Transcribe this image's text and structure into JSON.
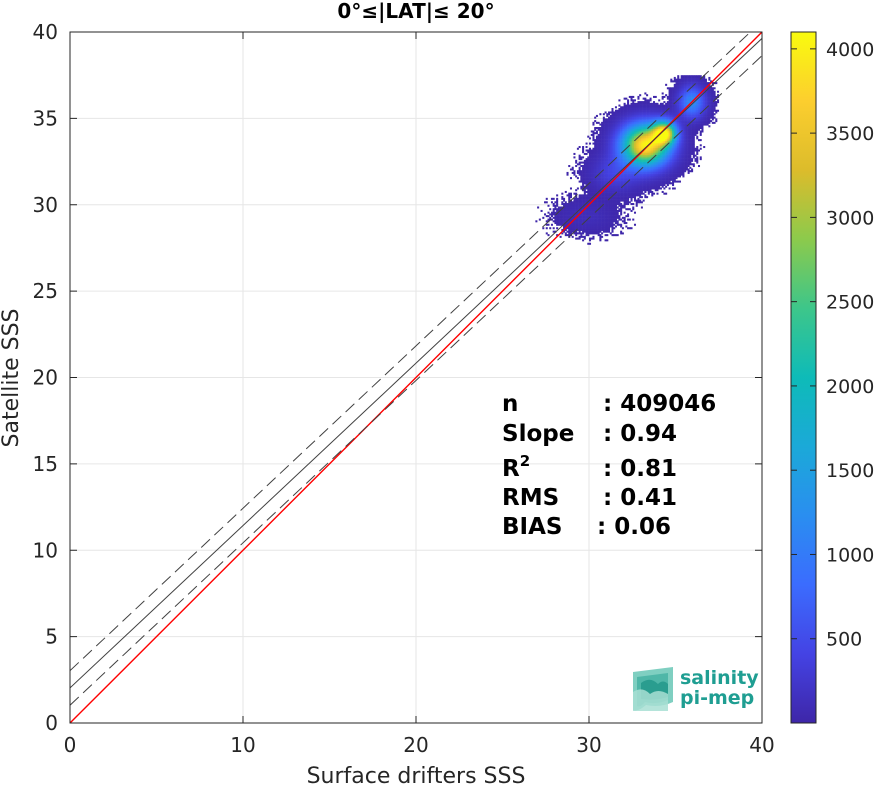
{
  "chart_data": {
    "type": "heatmap",
    "title": "0°≤|LAT|≤ 20°",
    "xlabel": "Surface drifters SSS",
    "ylabel": "Satellite SSS",
    "xlim": [
      0,
      40
    ],
    "ylim": [
      0,
      40
    ],
    "xticks": [
      "0",
      "10",
      "20",
      "30",
      "40"
    ],
    "yticks": [
      "0",
      "5",
      "10",
      "15",
      "20",
      "25",
      "30",
      "35",
      "40"
    ],
    "grid": true,
    "reference_lines": [
      {
        "name": "one-to-one",
        "color": "#ff0000",
        "intercept": 0,
        "slope": 1
      },
      {
        "name": "regression",
        "color": "#404040",
        "intercept": 2.03,
        "slope": 0.94
      },
      {
        "name": "regression-upper",
        "color": "#404040",
        "style": "dashed",
        "intercept": 3.03,
        "slope": 0.94
      },
      {
        "name": "regression-lower",
        "color": "#404040",
        "style": "dashed",
        "intercept": 1.03,
        "slope": 0.94
      }
    ],
    "density_clusters": [
      {
        "cx": 33.2,
        "cy": 33.4,
        "sx": 0.9,
        "sy": 0.8,
        "peak": 4000
      },
      {
        "cx": 34.3,
        "cy": 34.1,
        "sx": 0.45,
        "sy": 0.45,
        "peak": 3500
      },
      {
        "cx": 35.9,
        "cy": 35.9,
        "sx": 0.5,
        "sy": 0.6,
        "peak": 1200
      },
      {
        "cx": 31.5,
        "cy": 31.8,
        "sx": 0.9,
        "sy": 0.7,
        "peak": 400
      },
      {
        "cx": 29.8,
        "cy": 29.3,
        "sx": 1.1,
        "sy": 0.6,
        "peak": 120
      }
    ],
    "colorbar": {
      "colormap": "parula",
      "range": [
        0,
        4100
      ],
      "ticks": [
        "500",
        "1000",
        "1500",
        "2000",
        "2500",
        "3000",
        "3500",
        "4000"
      ]
    },
    "stats": [
      {
        "label": "n",
        "value": ": 409046"
      },
      {
        "label": "Slope",
        "value": ": 0.94"
      },
      {
        "label": "R2",
        "value": ": 0.81"
      },
      {
        "label": "RMS",
        "value": ": 0.41"
      },
      {
        "label": "BIAS",
        "value": ": 0.06"
      }
    ]
  },
  "logo": {
    "line1": "salinity",
    "line2": "pi-mep",
    "color": "#1f9e92"
  }
}
